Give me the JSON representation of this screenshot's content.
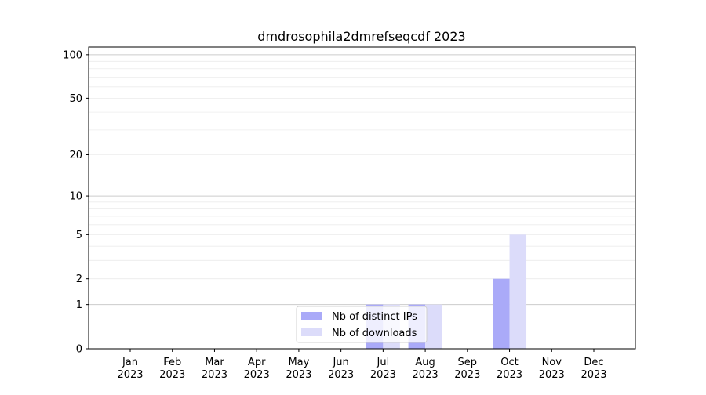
{
  "chart_data": {
    "type": "bar",
    "title": "dmdrosophila2dmrefseqcdf 2023",
    "xlabel": "",
    "ylabel": "",
    "yscale": "log(1+y)",
    "ylim": [
      0,
      113
    ],
    "yticks": [
      0,
      1,
      2,
      5,
      10,
      20,
      50,
      100
    ],
    "grid": true,
    "legend_position": "bottom-center",
    "categories": [
      "Jan\n2023",
      "Feb\n2023",
      "Mar\n2023",
      "Apr\n2023",
      "May\n2023",
      "Jun\n2023",
      "Jul\n2023",
      "Aug\n2023",
      "Sep\n2023",
      "Oct\n2023",
      "Nov\n2023",
      "Dec\n2023"
    ],
    "series": [
      {
        "name": "Nb of distinct IPs",
        "color": "#aaaaf8",
        "values": [
          0,
          0,
          0,
          0,
          0,
          0,
          1,
          1,
          0,
          2,
          0,
          0
        ]
      },
      {
        "name": "Nb of downloads",
        "color": "#dcdcfa",
        "values": [
          0,
          0,
          0,
          0,
          0,
          0,
          1,
          1,
          0,
          5,
          0,
          0
        ]
      }
    ]
  }
}
